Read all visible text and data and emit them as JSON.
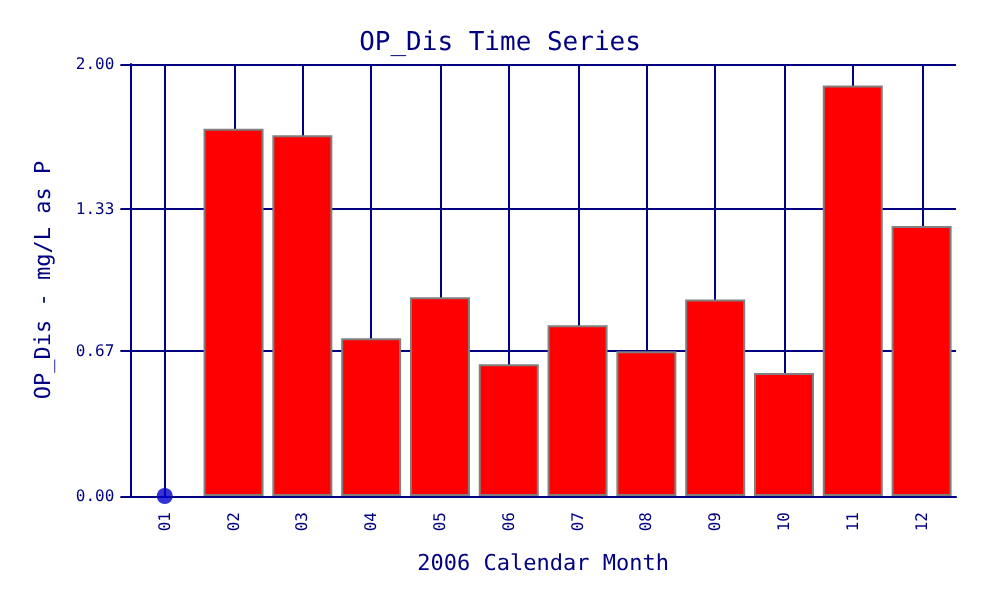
{
  "chart_data": {
    "type": "bar",
    "title": "OP_Dis Time Series",
    "xlabel": "2006 Calendar Month",
    "ylabel": "OP_Dis - mg/L as P",
    "categories": [
      "01",
      "02",
      "03",
      "04",
      "05",
      "06",
      "07",
      "08",
      "09",
      "10",
      "11",
      "12"
    ],
    "series": [
      {
        "color": "#ff0000",
        "values": [
          null,
          1.7,
          1.67,
          0.73,
          0.92,
          0.61,
          0.79,
          0.67,
          0.91,
          0.57,
          1.9,
          1.25
        ]
      },
      {
        "type": "scatter",
        "color": "#0000cc",
        "x": [
          "01"
        ],
        "values": [
          0
        ]
      }
    ],
    "ylim": [
      0,
      2
    ],
    "yticks": [
      {
        "value": 0,
        "label": "0.00"
      },
      {
        "value": 0.67,
        "label": "0.67"
      },
      {
        "value": 1.33,
        "label": "1.33"
      },
      {
        "value": 2,
        "label": "2.00"
      }
    ],
    "grid": true,
    "marker": "circle"
  }
}
